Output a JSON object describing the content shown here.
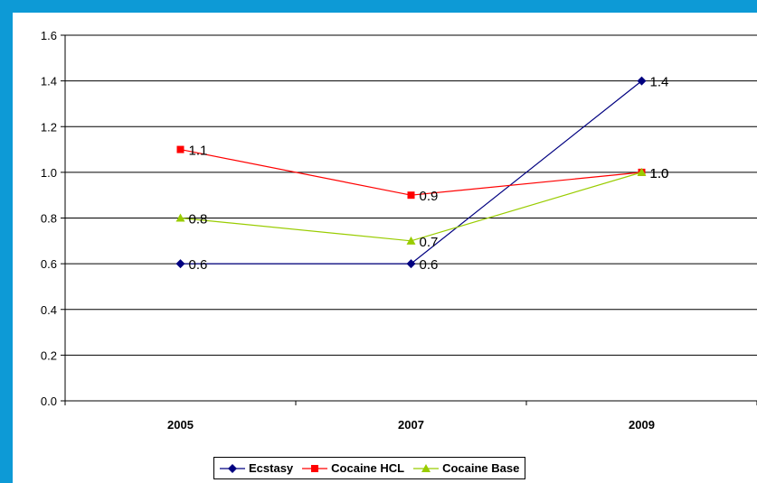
{
  "chart_data": {
    "type": "line",
    "title": "",
    "xlabel": "",
    "ylabel": "",
    "categories": [
      "2005",
      "2007",
      "2009"
    ],
    "ylim": [
      0.0,
      1.6
    ],
    "yticks": [
      "0.0",
      "0.2",
      "0.4",
      "0.6",
      "0.8",
      "1.0",
      "1.2",
      "1.4",
      "1.6"
    ],
    "grid": "horizontal",
    "legend_position": "bottom",
    "series": [
      {
        "name": "Ecstasy",
        "values": [
          0.6,
          0.6,
          1.4
        ],
        "labels": [
          "0.6",
          "0.6",
          "1.4"
        ],
        "color": "#000080",
        "marker": "diamond"
      },
      {
        "name": "Cocaine HCL",
        "values": [
          1.1,
          0.9,
          1.0
        ],
        "labels": [
          "1.1",
          "0.9",
          "1.0"
        ],
        "color": "#ff0000",
        "marker": "square"
      },
      {
        "name": "Cocaine Base",
        "values": [
          0.8,
          0.7,
          1.0
        ],
        "labels": [
          "0.8",
          "0.7",
          "1.0"
        ],
        "color": "#99cc00",
        "marker": "triangle"
      }
    ]
  }
}
